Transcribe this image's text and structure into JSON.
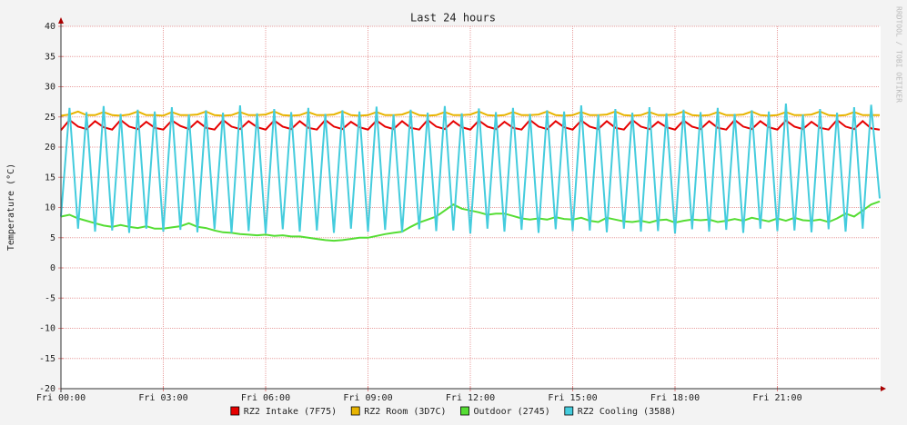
{
  "chart_data": {
    "type": "line",
    "title": "Last 24 hours",
    "y_label": "Temperature (°C)",
    "watermark": "RRDTOOL / TOBI OETIKER",
    "x": [
      0,
      0.25,
      0.5,
      0.75,
      1,
      1.25,
      1.5,
      1.75,
      2,
      2.25,
      2.5,
      2.75,
      3,
      3.25,
      3.5,
      3.75,
      4,
      4.25,
      4.5,
      4.75,
      5,
      5.25,
      5.5,
      5.75,
      6,
      6.25,
      6.5,
      6.75,
      7,
      7.25,
      7.5,
      7.75,
      8,
      8.25,
      8.5,
      8.75,
      9,
      9.25,
      9.5,
      9.75,
      10,
      10.25,
      10.5,
      10.75,
      11,
      11.25,
      11.5,
      11.75,
      12,
      12.25,
      12.5,
      12.75,
      13,
      13.25,
      13.5,
      13.75,
      14,
      14.25,
      14.5,
      14.75,
      15,
      15.25,
      15.5,
      15.75,
      16,
      16.25,
      16.5,
      16.75,
      17,
      17.25,
      17.5,
      17.75,
      18,
      18.25,
      18.5,
      18.75,
      19,
      19.25,
      19.5,
      19.75,
      20,
      20.25,
      20.5,
      20.75,
      21,
      21.25,
      21.5,
      21.75,
      22,
      22.25,
      22.5,
      22.75,
      23,
      23.25,
      23.5,
      23.75,
      24
    ],
    "xlim": [
      0,
      24
    ],
    "xticks": [
      {
        "value": 0,
        "label": "Fri 00:00"
      },
      {
        "value": 3,
        "label": "Fri 03:00"
      },
      {
        "value": 6,
        "label": "Fri 06:00"
      },
      {
        "value": 9,
        "label": "Fri 09:00"
      },
      {
        "value": 12,
        "label": "Fri 12:00"
      },
      {
        "value": 15,
        "label": "Fri 15:00"
      },
      {
        "value": 18,
        "label": "Fri 18:00"
      },
      {
        "value": 21,
        "label": "Fri 21:00"
      }
    ],
    "ylim": [
      -20,
      40
    ],
    "yticks": [
      -20,
      -15,
      -10,
      -5,
      0,
      5,
      10,
      15,
      20,
      25,
      30,
      35,
      40
    ],
    "grid": true,
    "series": [
      {
        "name": "RZ2 Intake (7F75)",
        "color": "#e60000",
        "values": [
          22.8,
          24.5,
          23.4,
          23.0,
          24.3,
          23.3,
          22.9,
          24.5,
          23.4,
          23.0,
          24.2,
          23.2,
          22.9,
          24.4,
          23.5,
          23.0,
          24.3,
          23.2,
          22.9,
          24.5,
          23.4,
          23.0,
          24.3,
          23.3,
          22.9,
          24.4,
          23.4,
          23.0,
          24.3,
          23.2,
          22.9,
          24.5,
          23.4,
          23.0,
          24.2,
          23.3,
          22.9,
          24.4,
          23.4,
          23.0,
          24.3,
          23.2,
          22.9,
          24.5,
          23.4,
          23.0,
          24.3,
          23.3,
          22.9,
          24.4,
          23.4,
          23.0,
          24.2,
          23.2,
          22.9,
          24.5,
          23.4,
          23.0,
          24.3,
          23.3,
          22.9,
          24.4,
          23.4,
          23.0,
          24.3,
          23.2,
          22.9,
          24.5,
          23.4,
          23.0,
          24.2,
          23.3,
          22.9,
          24.4,
          23.4,
          23.0,
          24.3,
          23.2,
          22.9,
          24.5,
          23.4,
          23.0,
          24.3,
          23.3,
          22.9,
          24.4,
          23.4,
          23.0,
          24.2,
          23.2,
          22.9,
          24.5,
          23.4,
          23.0,
          24.3,
          23.1,
          22.9
        ]
      },
      {
        "name": "RZ2 Room (3D7C)",
        "color": "#e8b400",
        "values": [
          25.2,
          25.4,
          25.9,
          25.3,
          25.3,
          25.8,
          25.3,
          25.2,
          25.4,
          25.9,
          25.3,
          25.3,
          25.2,
          25.8,
          25.3,
          25.3,
          25.4,
          25.9,
          25.3,
          25.2,
          25.3,
          25.8,
          25.3,
          25.3,
          25.4,
          25.9,
          25.3,
          25.2,
          25.3,
          25.8,
          25.3,
          25.3,
          25.4,
          25.9,
          25.3,
          25.2,
          25.3,
          25.8,
          25.3,
          25.3,
          25.4,
          25.9,
          25.3,
          25.2,
          25.3,
          25.8,
          25.3,
          25.3,
          25.4,
          25.9,
          25.3,
          25.2,
          25.3,
          25.8,
          25.3,
          25.3,
          25.4,
          25.9,
          25.3,
          25.2,
          25.3,
          25.8,
          25.3,
          25.3,
          25.4,
          25.9,
          25.3,
          25.2,
          25.3,
          25.8,
          25.3,
          25.3,
          25.4,
          25.9,
          25.3,
          25.2,
          25.3,
          25.8,
          25.3,
          25.3,
          25.4,
          25.9,
          25.3,
          25.2,
          25.3,
          25.8,
          25.3,
          25.3,
          25.4,
          25.9,
          25.3,
          25.2,
          25.3,
          25.8,
          25.3,
          25.3,
          25.3
        ]
      },
      {
        "name": "Outdoor (2745)",
        "color": "#55dd33",
        "values": [
          8.5,
          8.8,
          8.2,
          7.8,
          7.4,
          7.0,
          6.8,
          7.1,
          6.8,
          6.6,
          6.9,
          6.5,
          6.5,
          6.7,
          6.9,
          7.4,
          6.8,
          6.6,
          6.2,
          5.9,
          5.8,
          5.6,
          5.5,
          5.4,
          5.5,
          5.3,
          5.4,
          5.2,
          5.2,
          5.0,
          4.8,
          4.6,
          4.5,
          4.6,
          4.8,
          5.0,
          5.0,
          5.3,
          5.6,
          5.8,
          6.0,
          6.8,
          7.5,
          8.0,
          8.5,
          9.5,
          10.5,
          9.8,
          9.5,
          9.2,
          8.8,
          9.0,
          9.0,
          8.6,
          8.2,
          8.0,
          8.2,
          8.0,
          8.4,
          8.1,
          8.0,
          8.3,
          7.8,
          7.6,
          8.3,
          8.0,
          7.7,
          7.6,
          7.8,
          7.5,
          7.9,
          8.0,
          7.5,
          7.8,
          8.0,
          7.9,
          8.0,
          7.6,
          7.8,
          8.1,
          7.8,
          8.3,
          8.0,
          7.7,
          8.2,
          7.8,
          8.3,
          7.9,
          7.8,
          8.0,
          7.6,
          8.2,
          9.0,
          8.5,
          9.5,
          10.5,
          11.0
        ]
      },
      {
        "name": "RZ2 Cooling (3588)",
        "color": "#44ccdd",
        "values": [
          8.5,
          26.5,
          6.5,
          25.8,
          6.0,
          26.8,
          6.2,
          25.5,
          5.8,
          26.2,
          6.5,
          25.9,
          6.0,
          26.6,
          6.3,
          25.4,
          5.9,
          26.1,
          6.4,
          25.7,
          5.8,
          26.9,
          6.1,
          25.6,
          5.7,
          26.3,
          6.4,
          25.8,
          6.0,
          26.5,
          6.2,
          25.5,
          5.8,
          26.1,
          6.5,
          25.9,
          6.0,
          26.7,
          6.3,
          25.4,
          5.9,
          26.2,
          6.4,
          25.7,
          6.1,
          26.8,
          6.2,
          25.6,
          5.7,
          26.4,
          6.5,
          25.8,
          6.0,
          26.5,
          6.3,
          25.5,
          5.8,
          26.1,
          6.4,
          25.9,
          6.1,
          26.9,
          6.2,
          25.4,
          5.9,
          26.3,
          6.5,
          25.7,
          6.0,
          26.6,
          6.1,
          25.6,
          5.7,
          26.2,
          6.4,
          25.8,
          6.0,
          26.5,
          6.3,
          25.5,
          5.8,
          26.1,
          6.5,
          25.9,
          6.1,
          27.2,
          6.2,
          25.4,
          5.9,
          26.3,
          6.4,
          25.7,
          6.0,
          26.6,
          6.5,
          27.0,
          11.5
        ]
      }
    ],
    "legend": "bottom"
  }
}
